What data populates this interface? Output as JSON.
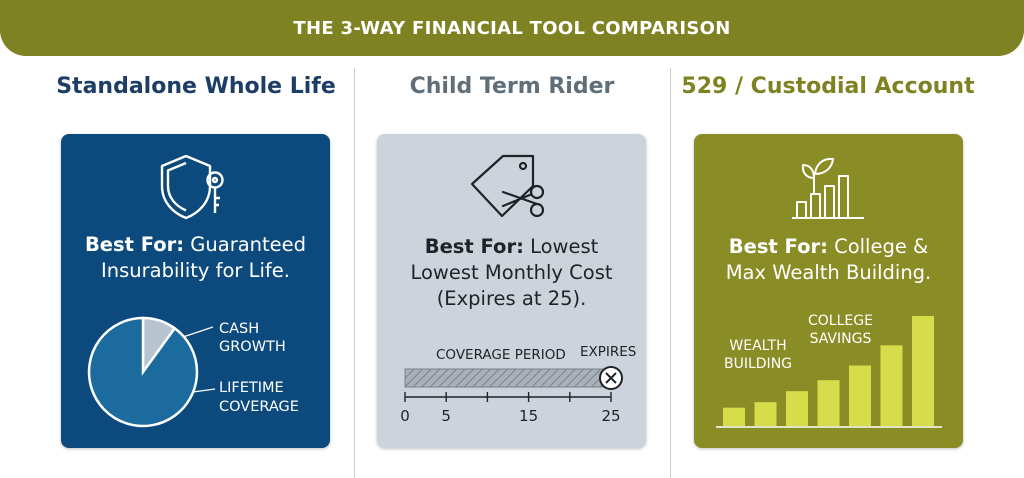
{
  "banner": {
    "title": "THE 3-WAY FINANCIAL TOOL COMPARISON"
  },
  "colors": {
    "olive": "#7f8222",
    "navy": "#0c4a7e",
    "navy_title": "#1c3d66",
    "grey_card": "#cdd3da",
    "grey_title": "#5f6e79",
    "olive_card": "#8a8d25",
    "olive_title": "#7f8222"
  },
  "columns": [
    {
      "title": "Standalone Whole Life",
      "icon": "shield-key-icon",
      "best_for_label": "Best For:",
      "best_for_text": "Guaranteed",
      "best_for_line2": "Insurability for Life.",
      "pie": {
        "slices": [
          {
            "label_line1": "CASH",
            "label_line2": "GROWTH",
            "fraction": 0.1
          },
          {
            "label_line1": "LIFETIME",
            "label_line2": "COVERAGE",
            "fraction": 0.9
          }
        ]
      }
    },
    {
      "title": "Child Term Rider",
      "icon": "price-tag-scissors-icon",
      "best_for_label": "Best For:",
      "best_for_text": "Lowest",
      "best_for_line2": "Lowest Monthly Cost",
      "best_for_line3": "(Expires at 25).",
      "timeline": {
        "coverage_label": "COVERAGE PERIOD",
        "expires_label": "EXPIRES",
        "ticks": [
          "0",
          "5",
          "15",
          "25"
        ],
        "tick_values": [
          0,
          5,
          15,
          25
        ],
        "range": [
          0,
          25
        ]
      }
    },
    {
      "title": "529 / Custodial Account",
      "icon": "plant-growth-chart-icon",
      "best_for_label": "Best For:",
      "best_for_text": "College &",
      "best_for_line2": "Max Wealth Building.",
      "bars": {
        "label_wealth_line1": "WEALTH",
        "label_wealth_line2": "BUILDING",
        "label_college_line1": "COLLEGE",
        "label_college_line2": "SAVINGS",
        "values": [
          1,
          1.3,
          1.9,
          2.5,
          3.3,
          4.4,
          6.0
        ]
      }
    }
  ]
}
